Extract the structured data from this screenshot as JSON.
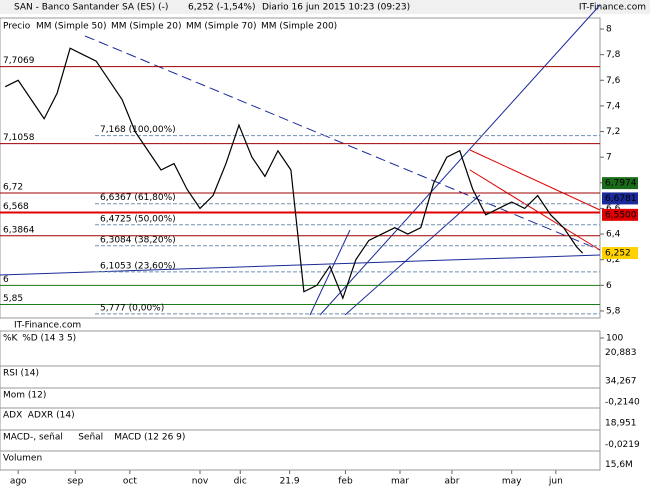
{
  "header": {
    "title": "SAN - Banco Santander SA (ES) (-)",
    "price": "6,252 (-1,54%)",
    "period": "Diario 16 jun 2015 10:23 (09:23)",
    "brand": "IT-Finance.com"
  },
  "chart_data": [
    {
      "type": "line",
      "watermark": "IT-Finance.com",
      "series": [
        {
          "name": "Precio",
          "color": "#000000",
          "values": [
            7.55,
            7.6,
            7.45,
            7.3,
            7.5,
            7.85,
            7.8,
            7.75,
            7.6,
            7.45,
            7.2,
            7.05,
            6.9,
            6.95,
            6.75,
            6.6,
            6.7,
            6.95,
            7.25,
            7.0,
            6.85,
            7.05,
            6.9,
            5.95,
            6.0,
            6.15,
            5.9,
            6.2,
            6.35,
            6.4,
            6.45,
            6.4,
            6.45,
            6.8,
            7.0,
            7.05,
            6.75,
            6.55,
            6.6,
            6.65,
            6.6,
            6.7,
            6.55,
            6.45,
            6.3,
            6.252
          ]
        }
      ],
      "x": [
        0,
        1,
        2,
        3,
        4,
        5,
        6,
        7,
        8,
        9,
        10,
        11,
        12,
        13,
        14,
        15,
        16,
        17,
        18,
        19,
        20,
        21,
        22,
        23,
        24,
        25,
        26,
        27,
        28,
        29,
        30,
        31,
        32,
        33,
        34,
        35,
        36,
        37,
        38,
        39,
        40,
        41,
        42,
        43,
        44,
        44.46
      ],
      "xlim": [
        -0.4,
        45.8
      ],
      "xticks": [
        {
          "value": 1,
          "label": "ago"
        },
        {
          "value": 5.4,
          "label": "sep"
        },
        {
          "value": 9.6,
          "label": "oct"
        },
        {
          "value": 15,
          "label": "nov"
        },
        {
          "value": 18.1,
          "label": "dic"
        },
        21.9,
        {
          "value": 26.2,
          "label": "feb"
        },
        {
          "value": 30.4,
          "label": "mar"
        },
        {
          "value": 34.4,
          "label": "abr"
        },
        {
          "value": 39,
          "label": "may"
        },
        {
          "value": 42.4,
          "label": "jun"
        }
      ],
      "ylim": [
        5.745,
        8.086
      ],
      "yticks": [
        {
          "value": 5.8,
          "label": "5,8"
        },
        6,
        {
          "value": 6.2,
          "label": "6,2"
        },
        {
          "value": 6.4,
          "label": "6,4"
        },
        {
          "value": 6.6,
          "label": "6,6"
        },
        {
          "value": 6.8,
          "label": "6,8"
        },
        7,
        {
          "value": 7.2,
          "label": "7,2"
        },
        {
          "value": 7.4,
          "label": "7,4"
        },
        {
          "value": 7.6,
          "label": "7,6"
        },
        {
          "value": 7.8,
          "label": "7,8"
        },
        8
      ],
      "legend": [
        {
          "name": "MM (Simple 50)",
          "color": "#9aa0c8"
        },
        {
          "name": "MM (Simple 20)",
          "color": "#c00000"
        },
        {
          "name": "MM (Simple 70)",
          "color": "#1a2a9a"
        },
        {
          "name": "MM (Simple 200)",
          "color": "#1a6a1a"
        }
      ],
      "levels": [
        {
          "value": 7.7069,
          "label": "7,7069",
          "color": "#a00000"
        },
        {
          "value": 7.1058,
          "label": "7,1058",
          "color": "#a00000"
        },
        {
          "value": 6.72,
          "label": "6,72",
          "color": "#a00000"
        },
        {
          "value": 6.568,
          "label": "6,568",
          "color": "#e00000"
        },
        {
          "value": 6.3864,
          "label": "6,3864",
          "color": "#a00000"
        },
        {
          "value": 6,
          "label": "6",
          "color": "#1a7a1a"
        },
        {
          "value": 5.85,
          "label": "5,85",
          "color": "#1a7a1a"
        }
      ],
      "fib": [
        {
          "value": 7.168,
          "label": "7,168 (100,00%)"
        },
        {
          "value": 6.6367,
          "label": "6,6367 (61,80%)"
        },
        {
          "value": 6.4725,
          "label": "6,4725 (50,00%)"
        },
        {
          "value": 6.3084,
          "label": "6,3084 (38,20%)"
        },
        {
          "value": 6.1053,
          "label": "6,1053 (23,60%)"
        },
        {
          "value": 5.777,
          "label": "5,777 (0,00%)"
        }
      ],
      "markers": [
        {
          "value": 6.7974,
          "label": "6,7974",
          "color": "#1a6a1a"
        },
        {
          "value": 6.6781,
          "label": "6,6781",
          "color": "#1a2a9a"
        },
        {
          "value": 6.55,
          "label": "6,5500",
          "color": "#e00000"
        },
        {
          "value": 6.252,
          "label": "6,252",
          "color": "#ffd200"
        }
      ]
    },
    {
      "type": "indicator",
      "labels": [
        {
          "name": "%K",
          "color": "#000000"
        },
        {
          "name": "%D (14 3 5)",
          "color": "#c00000"
        }
      ],
      "yticks": [
        100
      ],
      "last": {
        "value": 20.883,
        "label": "20,883"
      }
    },
    {
      "type": "indicator",
      "labels": [
        {
          "name": "RSI (14)",
          "color": "#000000"
        }
      ],
      "last": {
        "value": 34.267,
        "label": "34,267"
      }
    },
    {
      "type": "indicator",
      "labels": [
        {
          "name": "Mom (12)",
          "color": "#000000"
        }
      ],
      "last": {
        "value": -0.214,
        "label": "-0,2140"
      }
    },
    {
      "type": "indicator",
      "labels": [
        {
          "name": "ADX",
          "color": "#000000"
        },
        {
          "name": "ADXR (14)",
          "color": "#c00000"
        }
      ],
      "last": {
        "value": 18.951,
        "label": "18,951"
      }
    },
    {
      "type": "indicator",
      "labels": [
        {
          "name": "MACD-, señal",
          "color": "#000000"
        },
        {
          "name": "Señal",
          "color": "#c00000"
        },
        {
          "name": "MACD (12 26 9)",
          "color": "#1a2a9a"
        }
      ],
      "last": {
        "value": -0.0219,
        "label": "-0,0219"
      }
    },
    {
      "type": "indicator",
      "labels": [
        {
          "name": "Volumen",
          "color": "#000000"
        }
      ],
      "last": {
        "value": 15600000,
        "label": "15,6M"
      }
    }
  ]
}
